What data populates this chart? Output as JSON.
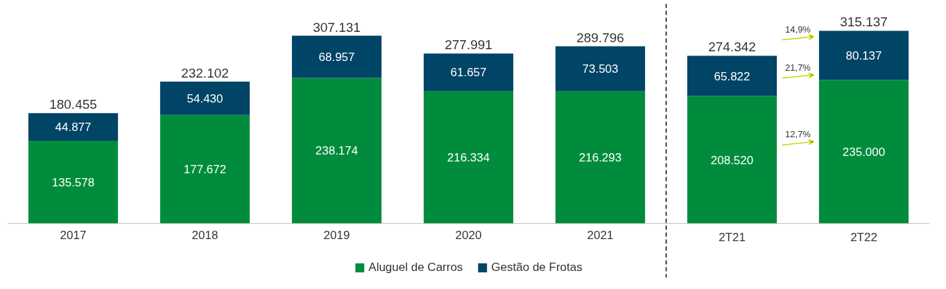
{
  "chart_data": {
    "type": "bar",
    "stacked": true,
    "categories": [
      "2017",
      "2018",
      "2019",
      "2020",
      "2021",
      "2T21",
      "2T22"
    ],
    "series": [
      {
        "name": "Aluguel de Carros",
        "color": "#008c3c",
        "values": [
          135578,
          177672,
          238174,
          216334,
          216293,
          208520,
          235000
        ],
        "value_labels": [
          "135.578",
          "177.672",
          "238.174",
          "216.334",
          "216.293",
          "208.520",
          "235.000"
        ]
      },
      {
        "name": "Gestão de Frotas",
        "color": "#004466",
        "values": [
          44877,
          54430,
          68957,
          61657,
          73503,
          65822,
          80137
        ],
        "value_labels": [
          "44.877",
          "54.430",
          "68.957",
          "61.657",
          "73.503",
          "65.822",
          "80.137"
        ]
      }
    ],
    "totals": [
      "180.455",
      "232.102",
      "307.131",
      "277.991",
      "289.796",
      "274.342",
      "315.137"
    ],
    "annotations": [
      "14,9%",
      "21,7%",
      "12,7%"
    ],
    "legend": "bottom",
    "grid": false
  }
}
